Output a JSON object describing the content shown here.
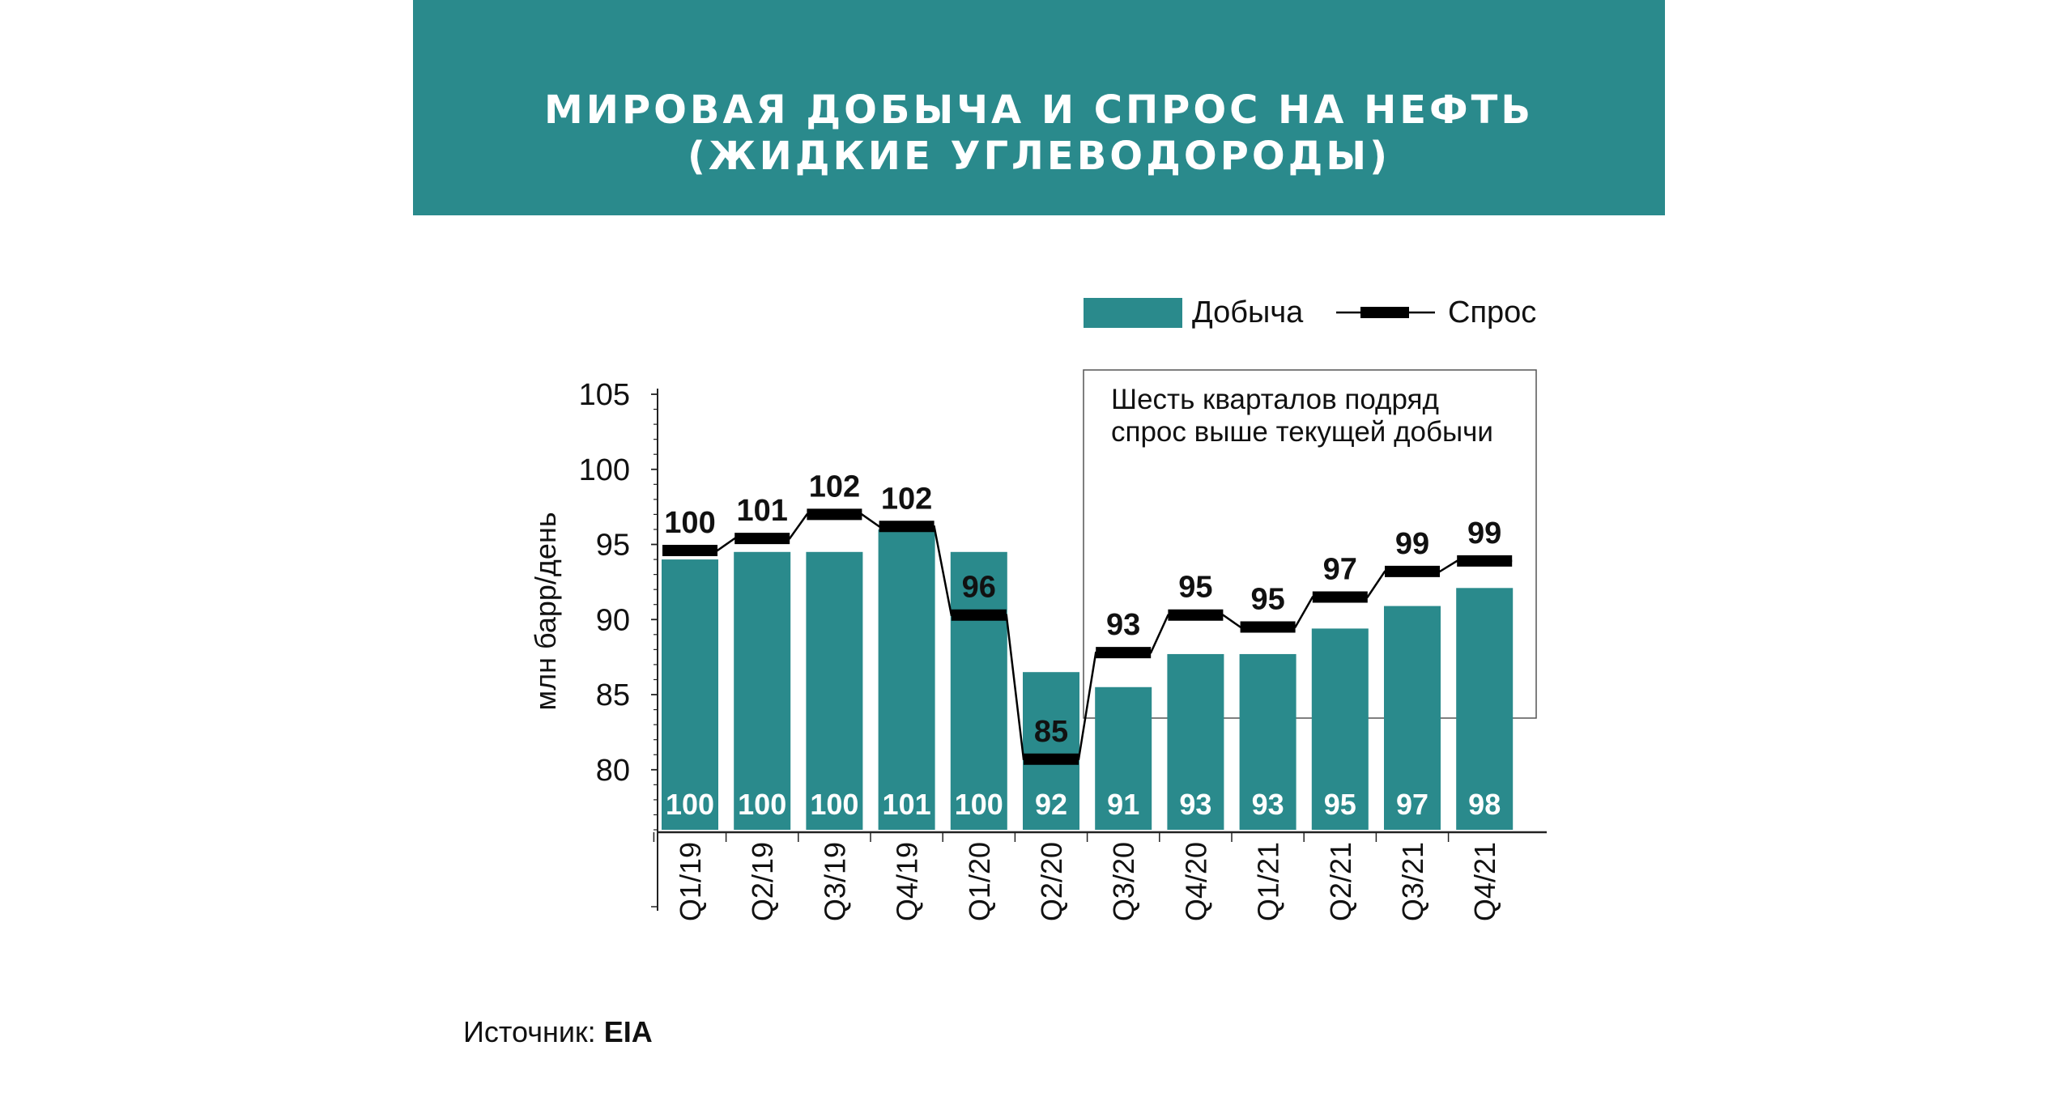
{
  "header": {
    "title_line1": "МИРОВАЯ ДОБЫЧА И СПРОС НА НЕФТЬ",
    "title_line2": "(ЖИДКИЕ УГЛЕВОДОРОДЫ)",
    "background_color": "#2a8a8c"
  },
  "source": {
    "label": "Источник: ",
    "value": "EIA"
  },
  "chart_data": {
    "type": "bar",
    "title": "МИРОВАЯ ДОБЫЧА И СПРОС НА НЕФТЬ (ЖИДКИЕ УГЛЕВОДОРОДЫ)",
    "ylabel": "млн барр/день",
    "xlabel": "",
    "ylim": [
      76,
      105
    ],
    "yticks": [
      80,
      85,
      90,
      95,
      100,
      105
    ],
    "categories": [
      "Q1/19",
      "Q2/19",
      "Q3/19",
      "Q4/19",
      "Q1/20",
      "Q2/20",
      "Q3/20",
      "Q4/20",
      "Q1/21",
      "Q2/21",
      "Q3/21",
      "Q4/21"
    ],
    "series": [
      {
        "name": "Добыча",
        "kind": "bar",
        "color": "#2a8a8c",
        "values": [
          94,
          94.5,
          94.5,
          96,
          94.5,
          86.5,
          85.5,
          87.7,
          87.7,
          89.4,
          90.9,
          92.1
        ],
        "labels": [
          "100",
          "100",
          "100",
          "101",
          "100",
          "92",
          "91",
          "93",
          "93",
          "95",
          "97",
          "98"
        ]
      },
      {
        "name": "Спрос",
        "kind": "line",
        "color": "#000000",
        "values": [
          94.6,
          95.4,
          97.0,
          96.2,
          90.3,
          80.7,
          87.8,
          90.3,
          89.5,
          91.5,
          93.2,
          93.9
        ],
        "labels": [
          "100",
          "101",
          "102",
          "102",
          "96",
          "85",
          "93",
          "95",
          "95",
          "97",
          "99",
          "99"
        ]
      }
    ],
    "legend": {
      "position": "top-right"
    },
    "annotation": {
      "line1": "Шесть кварталов подряд",
      "line2": "спрос выше текущей добычи",
      "from_category": "Q3/20",
      "to_category": "Q4/21"
    },
    "grid": false
  }
}
